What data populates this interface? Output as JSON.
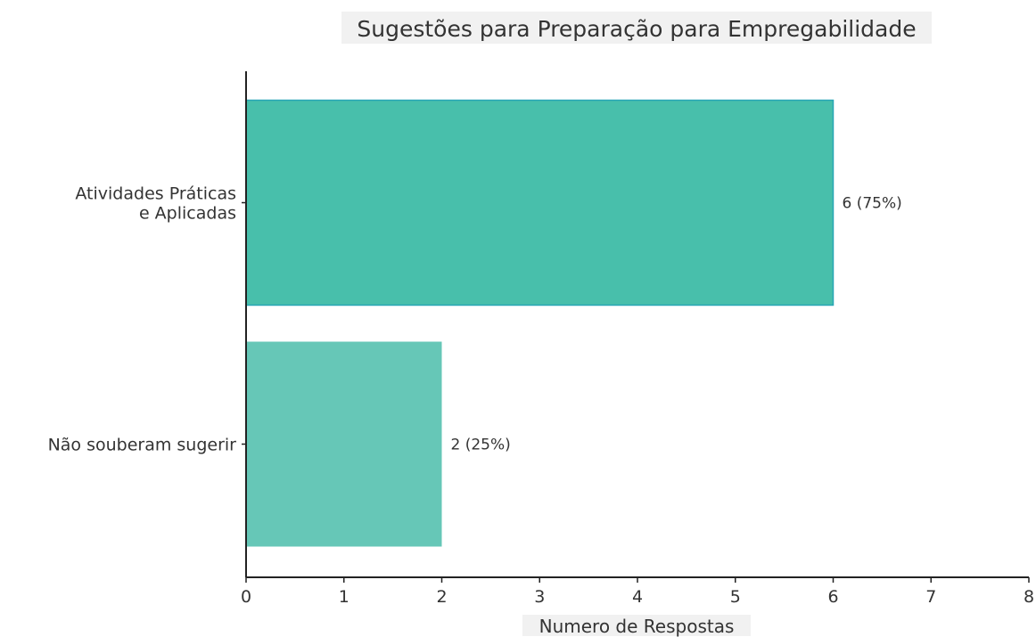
{
  "chart_data": {
    "type": "bar",
    "orientation": "horizontal",
    "title": "Sugestões para Preparação para Empregabilidade",
    "xlabel": "Numero de Respostas",
    "ylabel": "",
    "categories": [
      [
        "Atividades Práticas",
        "e Aplicadas"
      ],
      [
        "Não souberam sugerir"
      ]
    ],
    "values": [
      6,
      2
    ],
    "data_labels": [
      "6 (75%)",
      "2 (25%)"
    ],
    "xlim": [
      0,
      8
    ],
    "xticks": [
      "0",
      "1",
      "2",
      "3",
      "4",
      "5",
      "6",
      "7",
      "8"
    ],
    "colors": [
      "#48bfab",
      "#66c7b7"
    ],
    "grid": false,
    "legend": "none"
  }
}
